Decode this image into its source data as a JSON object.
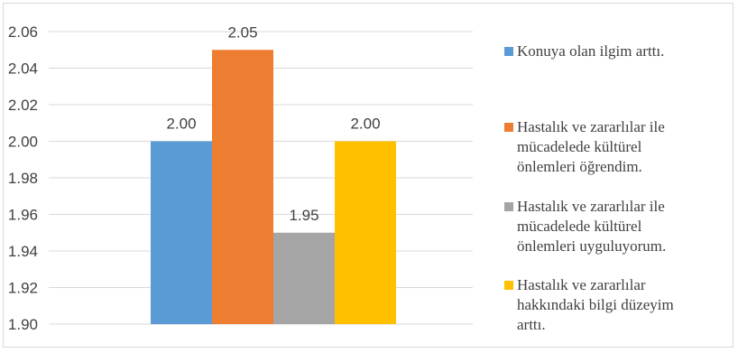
{
  "chart_data": {
    "type": "bar",
    "title": "",
    "xlabel": "",
    "ylabel": "",
    "categories": [
      ""
    ],
    "ylim": [
      1.9,
      2.06
    ],
    "y_ticks": [
      "1.90",
      "1.92",
      "1.94",
      "1.96",
      "1.98",
      "2.00",
      "2.02",
      "2.04",
      "2.06"
    ],
    "grid": true,
    "legend_position": "right",
    "series": [
      {
        "name": "Konuya olan ilgim arttı.",
        "legend_lines": [
          "Konuya olan ilgim arttı."
        ],
        "values": [
          2.0
        ],
        "label": "2.00",
        "color": "#5B9BD5"
      },
      {
        "name": "Hastalık ve zararlılar ile mücadelede kültürel önlemleri öğrendim.",
        "legend_lines": [
          "Hastalık ve zararlılar ile",
          "mücadelede kültürel",
          "önlemleri öğrendim."
        ],
        "values": [
          2.05
        ],
        "label": "2.05",
        "color": "#ED7D31"
      },
      {
        "name": "Hastalık ve zararlılar ile mücadelede kültürel önlemleri uyguluyorum.",
        "legend_lines": [
          "Hastalık ve zararlılar ile",
          "mücadelede kültürel",
          "önlemleri uyguluyorum."
        ],
        "values": [
          1.95
        ],
        "label": "1.95",
        "color": "#A5A5A5"
      },
      {
        "name": "Hastalık ve zararlılar hakkındaki bilgi düzeyim arttı.",
        "legend_lines": [
          "Hastalık ve zararlılar",
          "hakkındaki bilgi düzeyim",
          "arttı."
        ],
        "values": [
          2.0
        ],
        "label": "2.00",
        "color": "#FFC000"
      }
    ]
  }
}
